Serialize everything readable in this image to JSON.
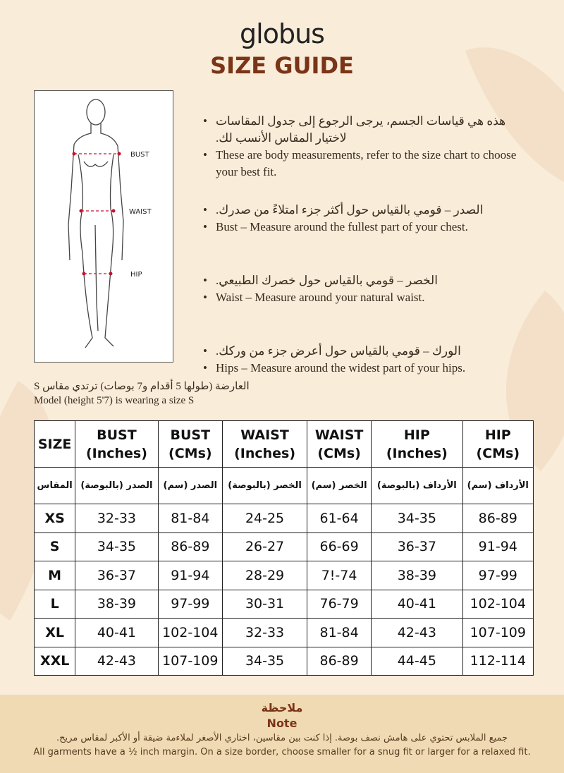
{
  "brand": "globus",
  "title": "SIZE GUIDE",
  "figure_labels": {
    "bust": "BUST",
    "waist": "WAIST",
    "hip": "HIP"
  },
  "bullets": [
    {
      "ar": "هذه هي قياسات الجسم، يرجى الرجوع إلى جدول المقاسات لاختيار المقاس الأنسب لك.",
      "en": "These are body measurements, refer to the size chart to choose your best fit."
    },
    {
      "ar": "الصدر – قومي بالقياس حول أكثر جزء امتلاءً من صدرك.",
      "en": "Bust – Measure around the fullest part of your chest."
    },
    {
      "ar": "الخصر – قومي بالقياس حول خصرك الطبيعي.",
      "en": "Waist – Measure around your natural waist."
    },
    {
      "ar": "الورك – قومي بالقياس حول أعرض جزء من وركك.",
      "en": "Hips – Measure around the widest part of your hips."
    }
  ],
  "model": {
    "ar": "العارضة (طولها 5 أقدام و7 بوصات) ترتدي مقاس S",
    "en": "Model (height 5'7) is wearing a size S"
  },
  "table": {
    "headers": [
      [
        "SIZE",
        ""
      ],
      [
        "BUST",
        "(Inches)"
      ],
      [
        "BUST",
        "(CMs)"
      ],
      [
        "WAIST",
        "(Inches)"
      ],
      [
        "WAIST",
        "(CMs)"
      ],
      [
        "HIP",
        "(Inches)"
      ],
      [
        "HIP",
        "(CMs)"
      ]
    ],
    "headers_ar": [
      "المقاس",
      "الصدر (بالبوصة)",
      "الصدر (سم)",
      "الخصر (بالبوصة)",
      "الخصر (سم)",
      "الأرداف (بالبوصة)",
      "الأرداف (سم)"
    ],
    "rows": [
      [
        "XS",
        "32-33",
        "81-84",
        "24-25",
        "61-64",
        "34-35",
        "86-89"
      ],
      [
        "S",
        "34-35",
        "86-89",
        "26-27",
        "66-69",
        "36-37",
        "91-94"
      ],
      [
        "M",
        "36-37",
        "91-94",
        "28-29",
        "7!-74",
        "38-39",
        "97-99"
      ],
      [
        "L",
        "38-39",
        "97-99",
        "30-31",
        "76-79",
        "40-41",
        "102-104"
      ],
      [
        "XL",
        "40-41",
        "102-104",
        "32-33",
        "81-84",
        "42-43",
        "107-109"
      ],
      [
        "XXL",
        "42-43",
        "107-109",
        "34-35",
        "86-89",
        "44-45",
        "112-114"
      ]
    ]
  },
  "note": {
    "title_ar": "ملاحظة",
    "title_en": "Note",
    "text_ar": "جميع الملابس تحتوي على هامش نصف بوصة. إذا كنت بين مقاسين، اختاري الأصغر لملاءمة ضيقة أو الأكبر لمقاس مريح.",
    "text_en": "All garments have a ½ inch margin. On a size border, choose smaller for a snug fit or larger for a relaxed fit."
  },
  "colors": {
    "accent": "#7a3417",
    "background": "#f9ecd9",
    "note_band": "#f0dab3",
    "measure_line": "#c8102e"
  }
}
